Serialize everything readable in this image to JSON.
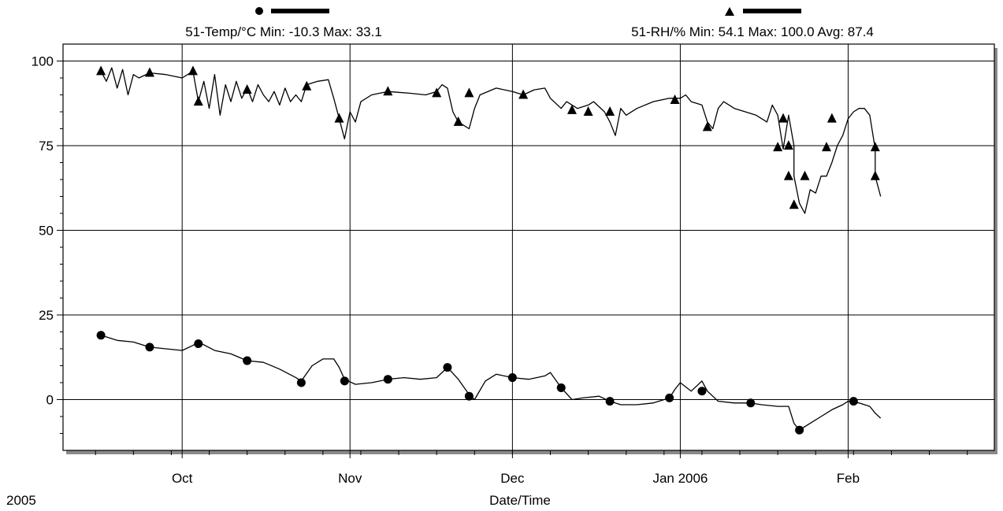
{
  "chart_data": {
    "type": "line",
    "title": "",
    "xlabel": "Date/Time",
    "ylabel": "",
    "year_label": "2005",
    "x_axis": {
      "type": "date",
      "range": [
        "2005-09-09",
        "2006-02-28"
      ],
      "tick_labels": [
        {
          "date": "2005-10-01",
          "label": "Oct"
        },
        {
          "date": "2005-11-01",
          "label": "Nov"
        },
        {
          "date": "2005-12-01",
          "label": "Dec"
        },
        {
          "date": "2006-01-01",
          "label": "Jan 2006"
        },
        {
          "date": "2006-02-01",
          "label": "Feb"
        }
      ]
    },
    "y_axis": {
      "range": [
        -15,
        105
      ],
      "ticks": [
        0,
        25,
        50,
        75,
        100
      ]
    },
    "grid": true,
    "legend_position": "top",
    "series": [
      {
        "name": "51-Temp/°C Min: -10.3 Max: 33.1",
        "marker": "circle",
        "color": "#000000",
        "points": [
          [
            "2005-09-16",
            19.0
          ],
          [
            "2005-09-19",
            17.5
          ],
          [
            "2005-09-22",
            17.0
          ],
          [
            "2005-09-25",
            15.5
          ],
          [
            "2005-09-28",
            15.0
          ],
          [
            "2005-10-01",
            14.5
          ],
          [
            "2005-10-03",
            16.0
          ],
          [
            "2005-10-04",
            17.0
          ],
          [
            "2005-10-07",
            14.5
          ],
          [
            "2005-10-10",
            13.5
          ],
          [
            "2005-10-13",
            11.5
          ],
          [
            "2005-10-16",
            11.0
          ],
          [
            "2005-10-19",
            9.0
          ],
          [
            "2005-10-22",
            6.5
          ],
          [
            "2005-10-23",
            5.5
          ],
          [
            "2005-10-25",
            10.0
          ],
          [
            "2005-10-27",
            12.0
          ],
          [
            "2005-10-29",
            12.0
          ],
          [
            "2005-10-30",
            9.5
          ],
          [
            "2005-10-31",
            6.0
          ],
          [
            "2005-11-02",
            4.5
          ],
          [
            "2005-11-05",
            5.0
          ],
          [
            "2005-11-08",
            6.0
          ],
          [
            "2005-11-11",
            6.5
          ],
          [
            "2005-11-14",
            6.0
          ],
          [
            "2005-11-17",
            6.5
          ],
          [
            "2005-11-19",
            9.5
          ],
          [
            "2005-11-21",
            6.0
          ],
          [
            "2005-11-23",
            1.5
          ],
          [
            "2005-11-24",
            0.0
          ],
          [
            "2005-11-26",
            5.5
          ],
          [
            "2005-11-28",
            7.5
          ],
          [
            "2005-12-01",
            6.5
          ],
          [
            "2005-12-04",
            6.0
          ],
          [
            "2005-12-07",
            7.0
          ],
          [
            "2005-12-08",
            8.0
          ],
          [
            "2005-12-10",
            3.5
          ],
          [
            "2005-12-12",
            0.0
          ],
          [
            "2005-12-14",
            0.5
          ],
          [
            "2005-12-17",
            1.0
          ],
          [
            "2005-12-19",
            -0.5
          ],
          [
            "2005-12-21",
            -1.5
          ],
          [
            "2005-12-24",
            -1.5
          ],
          [
            "2005-12-27",
            -1.0
          ],
          [
            "2005-12-30",
            0.5
          ],
          [
            "2005-12-31",
            3.0
          ],
          [
            "2006-01-01",
            5.0
          ],
          [
            "2006-01-03",
            2.5
          ],
          [
            "2006-01-05",
            5.5
          ],
          [
            "2006-01-06",
            2.5
          ],
          [
            "2006-01-08",
            -0.5
          ],
          [
            "2006-01-11",
            -1.0
          ],
          [
            "2006-01-14",
            -1.0
          ],
          [
            "2006-01-16",
            -1.5
          ],
          [
            "2006-01-19",
            -2.0
          ],
          [
            "2006-01-21",
            -2.0
          ],
          [
            "2006-01-22",
            -7.0
          ],
          [
            "2006-01-23",
            -9.0
          ],
          [
            "2006-01-25",
            -7.0
          ],
          [
            "2006-01-27",
            -5.0
          ],
          [
            "2006-01-29",
            -3.0
          ],
          [
            "2006-01-31",
            -1.5
          ],
          [
            "2006-02-01",
            -0.5
          ],
          [
            "2006-02-03",
            -1.0
          ],
          [
            "2006-02-05",
            -2.0
          ],
          [
            "2006-02-06",
            -4.0
          ],
          [
            "2006-02-07",
            -5.5
          ]
        ],
        "markers": [
          [
            "2005-09-16",
            19.0
          ],
          [
            "2005-09-25",
            15.5
          ],
          [
            "2005-10-04",
            16.5
          ],
          [
            "2005-10-13",
            11.5
          ],
          [
            "2005-10-23",
            5.0
          ],
          [
            "2005-10-31",
            5.5
          ],
          [
            "2005-11-08",
            6.0
          ],
          [
            "2005-11-19",
            9.5
          ],
          [
            "2005-11-23",
            1.0
          ],
          [
            "2005-12-01",
            6.5
          ],
          [
            "2005-12-10",
            3.5
          ],
          [
            "2005-12-19",
            -0.5
          ],
          [
            "2005-12-30",
            0.5
          ],
          [
            "2006-01-05",
            2.5
          ],
          [
            "2006-01-14",
            -1.0
          ],
          [
            "2006-01-23",
            -9.0
          ],
          [
            "2006-02-02",
            -0.5
          ]
        ]
      },
      {
        "name": "51-RH/% Min: 54.1 Max: 100.0 Avg: 87.4",
        "marker": "triangle",
        "color": "#000000",
        "points": [
          [
            "2005-09-16",
            97.0
          ],
          [
            "2005-09-17",
            94.0
          ],
          [
            "2005-09-18",
            98.0
          ],
          [
            "2005-09-19",
            92.0
          ],
          [
            "2005-09-20",
            97.5
          ],
          [
            "2005-09-21",
            90.0
          ],
          [
            "2005-09-22",
            96.0
          ],
          [
            "2005-09-23",
            95.0
          ],
          [
            "2005-09-25",
            96.5
          ],
          [
            "2005-09-28",
            96.0
          ],
          [
            "2005-10-01",
            95.0
          ],
          [
            "2005-10-03",
            97.0
          ],
          [
            "2005-10-04",
            88.0
          ],
          [
            "2005-10-05",
            94.0
          ],
          [
            "2005-10-06",
            86.0
          ],
          [
            "2005-10-07",
            96.0
          ],
          [
            "2005-10-08",
            84.0
          ],
          [
            "2005-10-09",
            93.0
          ],
          [
            "2005-10-10",
            88.0
          ],
          [
            "2005-10-11",
            94.0
          ],
          [
            "2005-10-12",
            89.0
          ],
          [
            "2005-10-13",
            92.0
          ],
          [
            "2005-10-14",
            88.0
          ],
          [
            "2005-10-15",
            93.0
          ],
          [
            "2005-10-16",
            90.0
          ],
          [
            "2005-10-17",
            88.0
          ],
          [
            "2005-10-18",
            91.0
          ],
          [
            "2005-10-19",
            87.0
          ],
          [
            "2005-10-20",
            92.0
          ],
          [
            "2005-10-21",
            88.0
          ],
          [
            "2005-10-22",
            90.0
          ],
          [
            "2005-10-23",
            88.0
          ],
          [
            "2005-10-24",
            93.0
          ],
          [
            "2005-10-26",
            94.0
          ],
          [
            "2005-10-28",
            94.5
          ],
          [
            "2005-10-29",
            89.0
          ],
          [
            "2005-10-30",
            83.0
          ],
          [
            "2005-10-31",
            77.0
          ],
          [
            "2005-11-01",
            85.0
          ],
          [
            "2005-11-02",
            82.0
          ],
          [
            "2005-11-03",
            88.0
          ],
          [
            "2005-11-05",
            90.0
          ],
          [
            "2005-11-08",
            91.0
          ],
          [
            "2005-11-12",
            90.5
          ],
          [
            "2005-11-15",
            90.0
          ],
          [
            "2005-11-17",
            91.0
          ],
          [
            "2005-11-18",
            93.0
          ],
          [
            "2005-11-19",
            92.0
          ],
          [
            "2005-11-20",
            85.0
          ],
          [
            "2005-11-21",
            82.0
          ],
          [
            "2005-11-23",
            80.0
          ],
          [
            "2005-11-24",
            86.0
          ],
          [
            "2005-11-25",
            90.0
          ],
          [
            "2005-11-28",
            92.0
          ],
          [
            "2005-12-01",
            91.0
          ],
          [
            "2005-12-03",
            90.0
          ],
          [
            "2005-12-05",
            91.5
          ],
          [
            "2005-12-07",
            92.0
          ],
          [
            "2005-12-08",
            89.0
          ],
          [
            "2005-12-10",
            86.0
          ],
          [
            "2005-12-11",
            88.0
          ],
          [
            "2005-12-13",
            86.0
          ],
          [
            "2005-12-15",
            87.0
          ],
          [
            "2005-12-16",
            88.0
          ],
          [
            "2005-12-18",
            85.0
          ],
          [
            "2005-12-19",
            82.0
          ],
          [
            "2005-12-20",
            78.0
          ],
          [
            "2005-12-21",
            86.0
          ],
          [
            "2005-12-22",
            84.0
          ],
          [
            "2005-12-24",
            86.0
          ],
          [
            "2005-12-27",
            88.0
          ],
          [
            "2005-12-30",
            89.0
          ],
          [
            "2006-01-01",
            89.0
          ],
          [
            "2006-01-02",
            90.0
          ],
          [
            "2006-01-03",
            88.0
          ],
          [
            "2006-01-05",
            87.0
          ],
          [
            "2006-01-06",
            82.0
          ],
          [
            "2006-01-07",
            80.0
          ],
          [
            "2006-01-08",
            86.0
          ],
          [
            "2006-01-09",
            88.0
          ],
          [
            "2006-01-11",
            86.0
          ],
          [
            "2006-01-13",
            85.0
          ],
          [
            "2006-01-15",
            84.0
          ],
          [
            "2006-01-17",
            82.0
          ],
          [
            "2006-01-18",
            87.0
          ],
          [
            "2006-01-19",
            84.0
          ],
          [
            "2006-01-20",
            74.0
          ],
          [
            "2006-01-21",
            84.0
          ],
          [
            "2006-01-22",
            75.0
          ],
          [
            "2006-01-22",
            66.0
          ],
          [
            "2006-01-23",
            58.0
          ],
          [
            "2006-01-24",
            55.0
          ],
          [
            "2006-01-25",
            62.0
          ],
          [
            "2006-01-26",
            61.0
          ],
          [
            "2006-01-27",
            66.0
          ],
          [
            "2006-01-28",
            66.0
          ],
          [
            "2006-01-29",
            70.0
          ],
          [
            "2006-01-30",
            75.0
          ],
          [
            "2006-01-31",
            78.0
          ],
          [
            "2006-02-01",
            83.0
          ],
          [
            "2006-02-02",
            85.0
          ],
          [
            "2006-02-03",
            86.0
          ],
          [
            "2006-02-04",
            86.0
          ],
          [
            "2006-02-05",
            84.0
          ],
          [
            "2006-02-06",
            74.0
          ],
          [
            "2006-02-06",
            66.0
          ],
          [
            "2006-02-07",
            60.0
          ]
        ],
        "markers": [
          [
            "2005-09-16",
            97.0
          ],
          [
            "2005-09-25",
            96.5
          ],
          [
            "2005-10-03",
            97.0
          ],
          [
            "2005-10-04",
            88.0
          ],
          [
            "2005-10-13",
            91.5
          ],
          [
            "2005-10-24",
            92.5
          ],
          [
            "2005-10-30",
            83.0
          ],
          [
            "2005-11-08",
            91.0
          ],
          [
            "2005-11-17",
            90.5
          ],
          [
            "2005-11-21",
            82.0
          ],
          [
            "2005-11-23",
            90.5
          ],
          [
            "2005-12-03",
            90.0
          ],
          [
            "2005-12-12",
            85.5
          ],
          [
            "2005-12-15",
            85.0
          ],
          [
            "2005-12-19",
            85.0
          ],
          [
            "2005-12-31",
            88.5
          ],
          [
            "2006-01-06",
            80.5
          ],
          [
            "2006-01-19",
            74.5
          ],
          [
            "2006-01-20",
            83.0
          ],
          [
            "2006-01-21",
            75.0
          ],
          [
            "2006-01-21",
            66.0
          ],
          [
            "2006-01-22",
            57.5
          ],
          [
            "2006-01-24",
            66.0
          ],
          [
            "2006-01-28",
            74.5
          ],
          [
            "2006-01-29",
            83.0
          ],
          [
            "2006-02-06",
            74.5
          ],
          [
            "2006-02-06",
            66.0
          ]
        ]
      }
    ]
  }
}
